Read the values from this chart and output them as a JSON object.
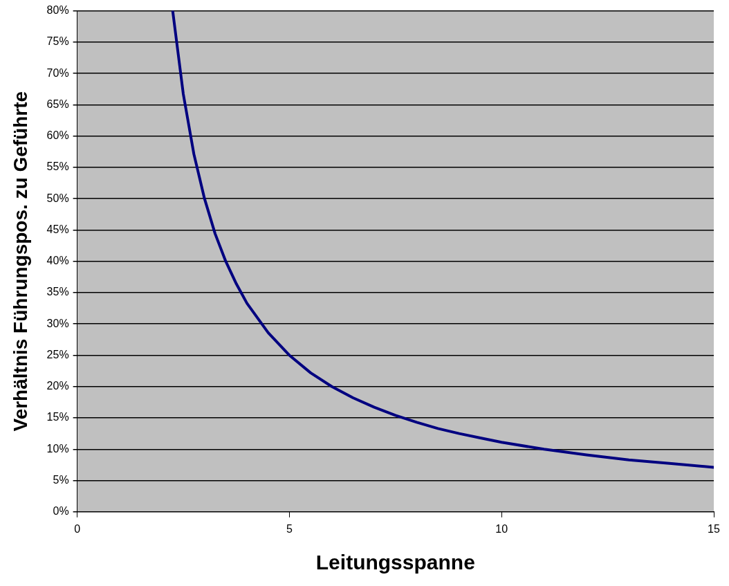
{
  "chart_data": {
    "type": "line",
    "xlabel": "Leitungsspanne",
    "ylabel": "Verhältnis Führungspos. zu Geführte",
    "x": [
      2.25,
      2.5,
      2.75,
      3,
      3.25,
      3.5,
      3.75,
      4,
      4.5,
      5,
      5.5,
      6,
      6.5,
      7,
      7.5,
      8,
      8.5,
      9,
      9.5,
      10,
      11,
      12,
      13,
      14,
      15
    ],
    "series": [
      {
        "color": "#000080",
        "values": [
          80,
          66.7,
          57.1,
          50,
          44.4,
          40,
          36.4,
          33.3,
          28.6,
          25,
          22.2,
          20,
          18.2,
          16.7,
          15.4,
          14.3,
          13.3,
          12.5,
          11.8,
          11.1,
          10,
          9.1,
          8.3,
          7.7,
          7.1
        ]
      }
    ],
    "xlim": [
      0,
      15
    ],
    "xticks": [
      0,
      5,
      10,
      15
    ],
    "ylim": [
      0,
      80
    ],
    "yticks": [
      {
        "value": 0,
        "label": "0%"
      },
      {
        "value": 5,
        "label": "5%"
      },
      {
        "value": 10,
        "label": "10%"
      },
      {
        "value": 15,
        "label": "15%"
      },
      {
        "value": 20,
        "label": "20%"
      },
      {
        "value": 25,
        "label": "25%"
      },
      {
        "value": 30,
        "label": "30%"
      },
      {
        "value": 35,
        "label": "35%"
      },
      {
        "value": 40,
        "label": "40%"
      },
      {
        "value": 45,
        "label": "45%"
      },
      {
        "value": 50,
        "label": "50%"
      },
      {
        "value": 55,
        "label": "55%"
      },
      {
        "value": 60,
        "label": "60%"
      },
      {
        "value": 65,
        "label": "65%"
      },
      {
        "value": 70,
        "label": "70%"
      },
      {
        "value": 75,
        "label": "75%"
      },
      {
        "value": 80,
        "label": "80%"
      }
    ],
    "grid": "y",
    "legend": false,
    "marker": "none",
    "line_style": "solid"
  }
}
